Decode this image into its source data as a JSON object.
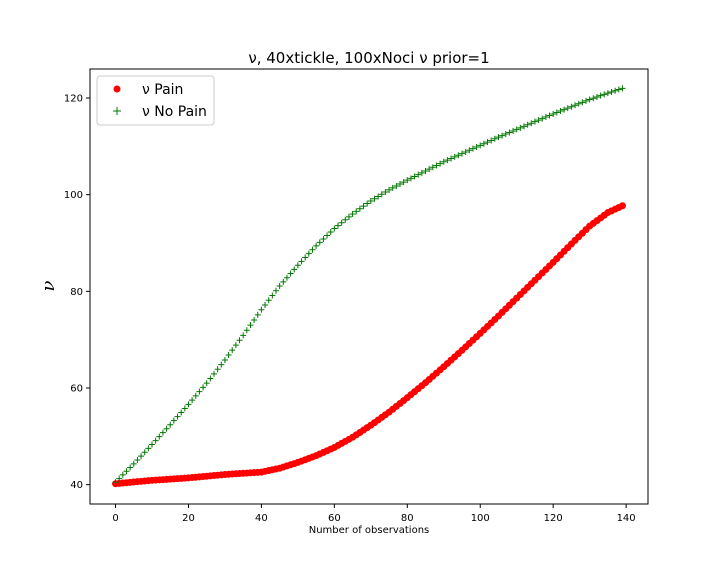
{
  "chart_data": {
    "type": "scatter",
    "title": "ν, 40xtickle, 100xNoci ν prior=1",
    "xlabel": "Number of observations",
    "ylabel": "ν",
    "xlim": [
      -7,
      146
    ],
    "ylim": [
      36,
      126
    ],
    "xticks": [
      0,
      20,
      40,
      60,
      80,
      100,
      120,
      140
    ],
    "yticks": [
      40,
      60,
      80,
      100,
      120
    ],
    "grid": false,
    "legend_position": "top-left",
    "x_range": [
      0,
      139
    ],
    "series": [
      {
        "name": "ν Pain",
        "marker": "circle",
        "color": "#ff0000",
        "points": [
          [
            0,
            40.2
          ],
          [
            10,
            40.9
          ],
          [
            20,
            41.4
          ],
          [
            30,
            42.1
          ],
          [
            40,
            42.6
          ],
          [
            45,
            43.4
          ],
          [
            50,
            44.6
          ],
          [
            55,
            46.0
          ],
          [
            60,
            47.7
          ],
          [
            65,
            49.8
          ],
          [
            70,
            52.3
          ],
          [
            75,
            55.0
          ],
          [
            80,
            58.0
          ],
          [
            85,
            61.1
          ],
          [
            90,
            64.4
          ],
          [
            95,
            67.8
          ],
          [
            100,
            71.3
          ],
          [
            105,
            74.9
          ],
          [
            110,
            78.6
          ],
          [
            115,
            82.3
          ],
          [
            120,
            86.0
          ],
          [
            125,
            89.8
          ],
          [
            130,
            93.5
          ],
          [
            135,
            96.3
          ],
          [
            139,
            97.7
          ]
        ]
      },
      {
        "name": "ν No Pain",
        "marker": "plus",
        "color": "#007700",
        "points": [
          [
            0,
            40.5
          ],
          [
            5,
            44.3
          ],
          [
            10,
            48.3
          ],
          [
            15,
            52.4
          ],
          [
            20,
            56.6
          ],
          [
            25,
            61.0
          ],
          [
            30,
            65.8
          ],
          [
            35,
            70.9
          ],
          [
            40,
            76.2
          ],
          [
            45,
            81.1
          ],
          [
            50,
            85.4
          ],
          [
            55,
            89.4
          ],
          [
            60,
            93.0
          ],
          [
            65,
            96.0
          ],
          [
            70,
            98.7
          ],
          [
            75,
            101.0
          ],
          [
            80,
            103.0
          ],
          [
            85,
            104.9
          ],
          [
            90,
            106.8
          ],
          [
            95,
            108.5
          ],
          [
            100,
            110.2
          ],
          [
            105,
            111.9
          ],
          [
            110,
            113.5
          ],
          [
            115,
            115.1
          ],
          [
            120,
            116.7
          ],
          [
            125,
            118.2
          ],
          [
            130,
            119.7
          ],
          [
            135,
            121.0
          ],
          [
            139,
            122.0
          ]
        ]
      }
    ]
  }
}
